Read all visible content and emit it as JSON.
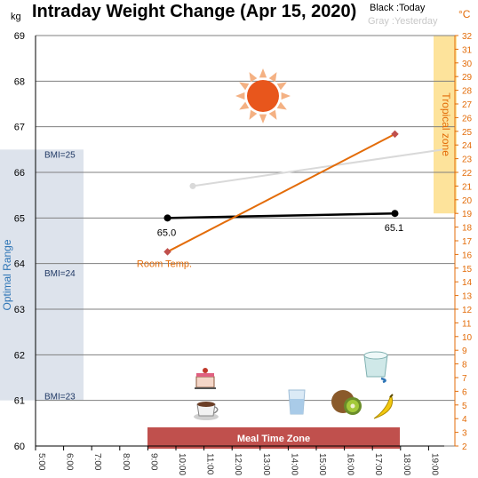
{
  "chart_data": {
    "type": "line",
    "title": "Intraday Weight Change (Apr 15, 2020)",
    "legend": {
      "today": "Black :Today",
      "yesterday": "Gray :Yesterday"
    },
    "y_left_unit": "kg",
    "y_right_unit": "°C",
    "ylim_left": [
      60,
      69
    ],
    "ylim_right": [
      2,
      32
    ],
    "x_ticks": [
      "5:00",
      "6:00",
      "7:00",
      "8:00",
      "9:00",
      "10:00",
      "11:00",
      "12:00",
      "13:00",
      "14:00",
      "15:00",
      "16:00",
      "17:00",
      "18:00",
      "19:00"
    ],
    "x_hours": [
      5,
      6,
      7,
      8,
      9,
      10,
      11,
      12,
      13,
      14,
      15,
      16,
      17,
      18,
      19
    ],
    "xlim_hours": [
      5,
      19.5
    ],
    "optimal_range": {
      "label": "Optimal Range",
      "ymin": 61,
      "ymax": 66.5,
      "color": "#dde3ec"
    },
    "bmi_labels": [
      {
        "label": "BMI=25",
        "y": 66.4
      },
      {
        "label": "BMI=24",
        "y": 63.8
      },
      {
        "label": "BMI=23",
        "y": 61.1
      }
    ],
    "tropical_zone": {
      "label": "Tropical zone",
      "tmin": 19,
      "tmax": 32,
      "color": "#fde39b"
    },
    "meal_time_zone": {
      "label": "Meal Time Zone",
      "start": 9,
      "end": 18,
      "color": "#c0504d"
    },
    "series": [
      {
        "name": "Today",
        "axis": "left",
        "color": "#000000",
        "x": [
          9.7,
          17.8
        ],
        "y": [
          65.0,
          65.1
        ],
        "labels": [
          "65.0",
          "65.1"
        ]
      },
      {
        "name": "Yesterday",
        "axis": "left",
        "color": "#d9d9d9",
        "x": [
          10.6,
          19.5
        ],
        "y": [
          65.7,
          66.5
        ]
      },
      {
        "name": "Room Temp.",
        "axis": "right",
        "color": "#e36c09",
        "x": [
          9.7,
          17.8
        ],
        "y": [
          16.2,
          24.8
        ]
      }
    ]
  },
  "colors": {
    "grid": "#7f7f7f",
    "right_axis": "#e36c09",
    "left_axis": "#000000"
  },
  "icons": [
    "sun-icon",
    "cake-icon",
    "coffee-cup-icon",
    "water-glass-icon",
    "kiwi-icon",
    "yogurt-icon",
    "banana-icon"
  ]
}
